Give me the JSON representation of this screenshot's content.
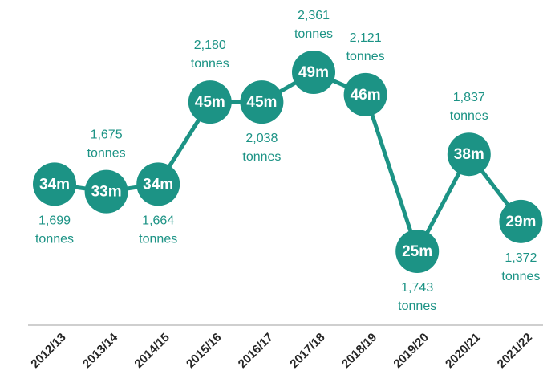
{
  "chart_data": {
    "type": "line",
    "categories": [
      "2012/13",
      "2013/14",
      "2014/15",
      "2015/16",
      "2016/17",
      "2017/18",
      "2018/19",
      "2019/20",
      "2020/21",
      "2021/22"
    ],
    "values": [
      34,
      33,
      34,
      45,
      45,
      49,
      46,
      25,
      38,
      29
    ],
    "value_labels": [
      "34m",
      "33m",
      "34m",
      "45m",
      "45m",
      "49m",
      "46m",
      "25m",
      "38m",
      "29m"
    ],
    "annotations": [
      "1,699 tonnes",
      "1,675 tonnes",
      "1,664 tonnes",
      "2,180 tonnes",
      "2,038 tonnes",
      "2,361 tonnes",
      "2,121 tonnes",
      "1,743 tonnes",
      "1,837 tonnes",
      "1,372 tonnes"
    ],
    "color": "#1c9385"
  }
}
